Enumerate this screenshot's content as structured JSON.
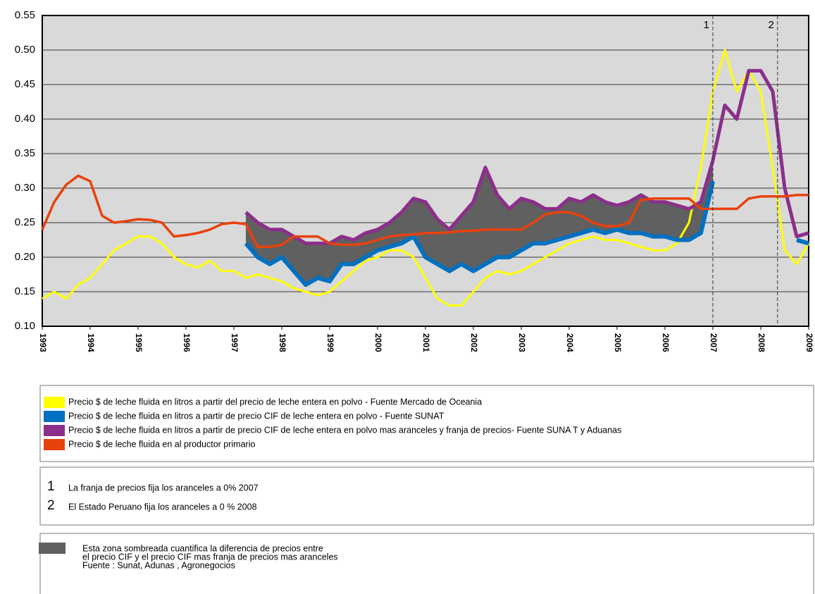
{
  "chart_data": {
    "type": "line",
    "xlim": [
      1993,
      2009
    ],
    "ylim": [
      0.1,
      0.55
    ],
    "xticks": [
      1993,
      1994,
      1995,
      1996,
      1997,
      1998,
      1999,
      2000,
      2001,
      2002,
      2003,
      2004,
      2005,
      2006,
      2007,
      2008,
      2009
    ],
    "yticks": [
      {
        "value": 0.1,
        "label": "0.10"
      },
      0.15,
      {
        "value": 0.2,
        "label": "0.20"
      },
      0.25,
      {
        "value": 0.3,
        "label": "0.30"
      },
      0.35,
      {
        "value": 0.4,
        "label": "0.40"
      },
      0.45,
      {
        "value": 0.5,
        "label": "0.50"
      },
      0.55
    ],
    "grid": true,
    "x": [
      1993,
      1993.25,
      1993.5,
      1993.75,
      1994,
      1994.25,
      1994.5,
      1994.75,
      1995,
      1995.25,
      1995.5,
      1995.75,
      1996,
      1996.25,
      1996.5,
      1996.75,
      1997,
      1997.25,
      1997.5,
      1997.75,
      1998,
      1998.25,
      1998.5,
      1998.75,
      1999,
      1999.25,
      1999.5,
      1999.75,
      2000,
      2000.25,
      2000.5,
      2000.75,
      2001,
      2001.25,
      2001.5,
      2001.75,
      2002,
      2002.25,
      2002.5,
      2002.75,
      2003,
      2003.25,
      2003.5,
      2003.75,
      2004,
      2004.25,
      2004.5,
      2004.75,
      2005,
      2005.25,
      2005.5,
      2005.75,
      2006,
      2006.25,
      2006.5,
      2006.75,
      2007,
      2007.25,
      2007.5,
      2007.75,
      2008,
      2008.25,
      2008.5,
      2008.75,
      2009
    ],
    "series": [
      {
        "name": "Precio $ de leche fluida en litros a partir del precio de leche entera en polvo - Fuente Mercado de  Oceania",
        "color": "#ffff00",
        "values": [
          0.14,
          0.15,
          0.14,
          0.16,
          0.17,
          0.19,
          0.21,
          0.22,
          0.23,
          0.23,
          0.22,
          0.2,
          0.19,
          0.185,
          0.195,
          0.18,
          0.18,
          0.17,
          0.175,
          0.17,
          0.165,
          0.155,
          0.15,
          0.145,
          0.15,
          0.165,
          0.18,
          0.195,
          0.2,
          0.21,
          0.21,
          0.2,
          0.17,
          0.14,
          0.13,
          0.13,
          0.15,
          0.17,
          0.18,
          0.175,
          0.18,
          0.19,
          0.2,
          0.21,
          0.22,
          0.225,
          0.23,
          0.225,
          0.225,
          0.22,
          0.215,
          0.21,
          0.21,
          0.22,
          0.25,
          0.33,
          0.44,
          0.5,
          0.44,
          0.47,
          0.44,
          0.33,
          0.21,
          0.19,
          0.22
        ]
      },
      {
        "name": "Precio $ de leche fluida en litros a partir de precio CIF de  leche entera en polvo - Fuente SUNAT",
        "color": "#0070c0",
        "values": [
          null,
          null,
          null,
          null,
          null,
          null,
          null,
          null,
          null,
          null,
          null,
          null,
          null,
          null,
          null,
          null,
          null,
          0.22,
          0.2,
          0.19,
          0.2,
          0.18,
          0.16,
          0.17,
          0.165,
          0.19,
          0.19,
          0.2,
          0.21,
          0.215,
          0.22,
          0.23,
          0.2,
          0.19,
          0.18,
          0.19,
          0.18,
          0.19,
          0.2,
          0.2,
          0.21,
          0.22,
          0.22,
          0.225,
          0.23,
          0.235,
          0.24,
          0.235,
          0.24,
          0.235,
          0.235,
          0.23,
          0.23,
          0.225,
          0.225,
          0.235,
          0.31,
          null,
          null,
          null,
          null,
          null,
          null,
          0.225,
          0.22
        ]
      },
      {
        "name": "Precio $ de leche fluida en litros a partir de precio CIF  de  leche entera en polvo  mas aranceles y franja de precios- Fuente SUNA T y Aduanas",
        "color": "#8b2f8b",
        "values": [
          null,
          null,
          null,
          null,
          null,
          null,
          null,
          null,
          null,
          null,
          null,
          null,
          null,
          null,
          null,
          null,
          null,
          0.265,
          0.25,
          0.24,
          0.24,
          0.23,
          0.22,
          0.22,
          0.22,
          0.23,
          0.225,
          0.235,
          0.24,
          0.25,
          0.265,
          0.285,
          0.28,
          0.255,
          0.24,
          0.26,
          0.28,
          0.33,
          0.29,
          0.27,
          0.285,
          0.28,
          0.27,
          0.27,
          0.285,
          0.28,
          0.29,
          0.28,
          0.275,
          0.28,
          0.29,
          0.28,
          0.28,
          0.275,
          0.27,
          0.28,
          0.34,
          0.42,
          0.4,
          0.47,
          0.47,
          0.44,
          0.3,
          0.23,
          0.235
        ]
      },
      {
        "name": "Precio $ de leche fluida en  al productor primario",
        "color": "#e8420c",
        "values": [
          0.24,
          0.28,
          0.305,
          0.318,
          0.31,
          0.26,
          0.25,
          0.252,
          0.255,
          0.254,
          0.25,
          0.23,
          0.232,
          0.235,
          0.24,
          0.248,
          0.25,
          0.248,
          0.215,
          0.215,
          0.218,
          0.23,
          0.23,
          0.23,
          0.22,
          0.218,
          0.218,
          0.22,
          0.225,
          0.23,
          0.232,
          0.233,
          0.235,
          0.235,
          0.236,
          0.238,
          0.238,
          0.24,
          0.24,
          0.24,
          0.24,
          0.25,
          0.262,
          0.265,
          0.265,
          0.26,
          0.25,
          0.245,
          0.245,
          0.25,
          0.283,
          0.285,
          0.285,
          0.285,
          0.285,
          0.27,
          0.27,
          0.27,
          0.27,
          0.285,
          0.288,
          0.288,
          0.288,
          0.29,
          0.29
        ]
      }
    ],
    "shade_color": "#606060",
    "markers": [
      {
        "x": 2007,
        "label": "1"
      },
      {
        "x": 2008.35,
        "label": "2"
      }
    ],
    "notes": [
      {
        "label": "1",
        "text": "La franja de precios fija los aranceles a 0%  2007"
      },
      {
        "label": "2",
        "text": "El Estado Peruano  fija los aranceles a 0 % 2008"
      }
    ],
    "shade_note": [
      "Esta zona sombreada cuantifica la diferencia de precios entre",
      "el precio CIF y el precio CIF mas franja de precios mas aranceles",
      "Fuente : Sunat, Adunas , Agronegocios"
    ]
  }
}
